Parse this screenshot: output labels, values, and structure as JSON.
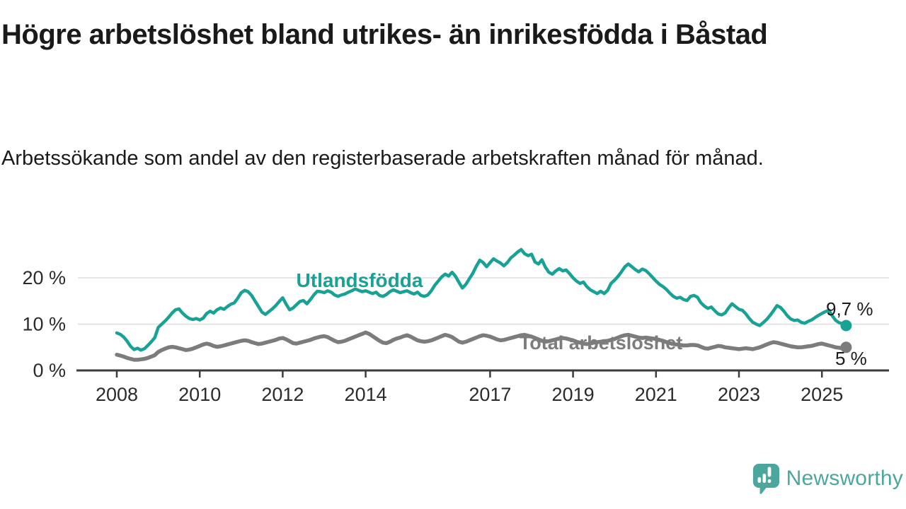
{
  "header": {
    "title": "Högre arbetslöshet bland utrikes- än inrikesfödda i Båstad",
    "subtitle": "Arbetssökande som andel av den registerbaserade arbetskraften månad för månad."
  },
  "branding": {
    "name": "Newsworthy",
    "color": "#4BA79E",
    "icon": "speech-bubble-bar-chart-exclamation-icon"
  },
  "colors": {
    "foreign_born_series": "#18A295",
    "total_series": "#7C7C7C",
    "grid": "#DEDEDE",
    "axis": "#3D3D3D",
    "text": "#1A1A1A"
  },
  "chart_data": {
    "type": "line",
    "title": "Högre arbetslöshet bland utrikes- än inrikesfödda i Båstad",
    "xlabel": "",
    "ylabel": "%",
    "grid": "horizontal",
    "legend_position": "inline-labels",
    "x_axis": {
      "unit": "year",
      "ticks": [
        2008,
        2010,
        2012,
        2014,
        2017,
        2019,
        2021,
        2023,
        2025
      ],
      "tick_labels": [
        "2008",
        "2010",
        "2012",
        "2014",
        "2017",
        "2019",
        "2021",
        "2023",
        "2025"
      ]
    },
    "y_axis": {
      "unit": "%",
      "ticks": [
        0,
        10,
        20
      ],
      "tick_labels": [
        "0 %",
        "10 %",
        "20 %"
      ],
      "range": [
        0,
        27
      ]
    },
    "series": [
      {
        "name": "Utlandsfödda",
        "color": "#18A295",
        "start": 2008,
        "points_per_year": 12,
        "end_label": "9,7 %",
        "end_value": 9.7,
        "values": [
          8.1,
          7.8,
          7.2,
          6.3,
          5.2,
          4.5,
          4.8,
          4.4,
          4.7,
          5.4,
          6.2,
          7.1,
          9.3,
          10.0,
          10.7,
          11.5,
          12.4,
          13.1,
          13.3,
          12.4,
          11.7,
          11.2,
          11.0,
          11.2,
          10.9,
          11.3,
          12.3,
          12.8,
          12.4,
          13.1,
          13.5,
          13.2,
          13.8,
          14.3,
          14.6,
          15.6,
          16.8,
          17.3,
          17.0,
          16.2,
          15.0,
          13.8,
          12.6,
          12.1,
          12.7,
          13.3,
          14.0,
          14.9,
          15.7,
          14.3,
          13.1,
          13.5,
          14.2,
          14.9,
          15.1,
          14.4,
          15.3,
          16.3,
          17.1,
          17.0,
          16.8,
          17.2,
          16.9,
          16.3,
          16.0,
          16.3,
          16.5,
          16.9,
          17.2,
          17.6,
          17.3,
          17.0,
          17.2,
          16.9,
          16.6,
          16.9,
          16.2,
          16.0,
          16.4,
          17.0,
          17.4,
          17.1,
          16.8,
          17.0,
          17.2,
          16.8,
          16.5,
          16.9,
          16.2,
          16.0,
          16.3,
          17.2,
          18.4,
          19.3,
          20.2,
          20.8,
          20.4,
          21.2,
          20.3,
          19.0,
          17.8,
          18.6,
          19.8,
          21.0,
          22.5,
          23.8,
          23.3,
          22.4,
          23.3,
          24.1,
          23.6,
          23.2,
          22.6,
          23.3,
          24.3,
          24.9,
          25.6,
          26.1,
          25.2,
          24.8,
          25.1,
          23.4,
          23.0,
          23.9,
          22.3,
          21.2,
          20.8,
          21.5,
          22.0,
          21.5,
          21.7,
          20.9,
          20.0,
          19.3,
          18.8,
          19.1,
          18.1,
          17.4,
          17.0,
          16.6,
          17.1,
          16.6,
          17.3,
          18.8,
          19.5,
          20.3,
          21.3,
          22.4,
          23.0,
          22.4,
          21.8,
          21.3,
          21.9,
          21.6,
          20.9,
          20.1,
          19.3,
          18.6,
          18.1,
          17.5,
          16.7,
          16.0,
          15.6,
          15.8,
          15.3,
          15.1,
          16.0,
          16.2,
          15.8,
          14.6,
          13.9,
          13.4,
          13.7,
          12.9,
          12.2,
          12.0,
          12.4,
          13.5,
          14.4,
          13.8,
          13.2,
          13.0,
          12.2,
          11.2,
          10.4,
          10.0,
          9.7,
          10.3,
          11.0,
          11.9,
          12.9,
          14.0,
          13.6,
          12.8,
          11.8,
          11.1,
          10.8,
          10.9,
          10.4,
          10.2,
          10.6,
          10.9,
          11.4,
          11.9,
          12.3,
          12.7,
          13.0,
          11.8,
          10.8,
          10.3,
          10.1,
          9.7
        ]
      },
      {
        "name": "Total arbetslöshet",
        "color": "#7C7C7C",
        "start": 2008,
        "points_per_year": 12,
        "end_label": "5 %",
        "end_value": 5,
        "values": [
          3.4,
          3.2,
          3.0,
          2.7,
          2.5,
          2.3,
          2.3,
          2.4,
          2.5,
          2.7,
          3.0,
          3.3,
          4.0,
          4.4,
          4.7,
          5.0,
          5.1,
          5.0,
          4.8,
          4.6,
          4.4,
          4.5,
          4.7,
          5.0,
          5.3,
          5.6,
          5.8,
          5.6,
          5.3,
          5.1,
          5.2,
          5.4,
          5.6,
          5.8,
          6.0,
          6.2,
          6.4,
          6.5,
          6.4,
          6.1,
          5.9,
          5.7,
          5.8,
          6.0,
          6.2,
          6.4,
          6.6,
          6.9,
          7.0,
          6.7,
          6.3,
          5.9,
          5.8,
          6.0,
          6.2,
          6.4,
          6.6,
          6.9,
          7.1,
          7.3,
          7.4,
          7.2,
          6.8,
          6.4,
          6.1,
          6.2,
          6.4,
          6.7,
          7.0,
          7.3,
          7.6,
          7.9,
          8.2,
          7.9,
          7.4,
          6.9,
          6.4,
          6.0,
          5.9,
          6.2,
          6.6,
          6.9,
          7.1,
          7.4,
          7.6,
          7.3,
          6.9,
          6.5,
          6.3,
          6.2,
          6.3,
          6.5,
          6.8,
          7.1,
          7.4,
          7.7,
          7.5,
          7.2,
          6.7,
          6.2,
          6.0,
          6.2,
          6.5,
          6.8,
          7.1,
          7.4,
          7.6,
          7.5,
          7.3,
          7.0,
          6.7,
          6.5,
          6.6,
          6.8,
          7.0,
          7.2,
          7.4,
          7.6,
          7.7,
          7.5,
          7.3,
          7.0,
          6.7,
          6.4,
          6.2,
          6.3,
          6.5,
          6.7,
          6.9,
          7.0,
          6.9,
          6.7,
          6.5,
          6.2,
          6.0,
          5.8,
          5.7,
          5.8,
          6.0,
          6.1,
          6.2,
          6.3,
          6.4,
          6.6,
          6.8,
          7.1,
          7.4,
          7.6,
          7.7,
          7.5,
          7.3,
          7.1,
          7.0,
          7.1,
          7.0,
          6.9,
          6.8,
          6.6,
          6.4,
          6.1,
          5.9,
          5.7,
          5.6,
          5.5,
          5.4,
          5.4,
          5.5,
          5.5,
          5.4,
          5.1,
          4.8,
          4.7,
          4.9,
          5.1,
          5.3,
          5.2,
          5.0,
          4.9,
          4.8,
          4.7,
          4.6,
          4.7,
          4.8,
          4.7,
          4.6,
          4.8,
          5.0,
          5.3,
          5.6,
          5.9,
          6.1,
          6.0,
          5.8,
          5.6,
          5.4,
          5.2,
          5.1,
          5.0,
          5.0,
          5.1,
          5.2,
          5.3,
          5.5,
          5.7,
          5.8,
          5.6,
          5.4,
          5.2,
          5.0,
          4.9,
          4.8,
          5.0
        ]
      }
    ]
  }
}
